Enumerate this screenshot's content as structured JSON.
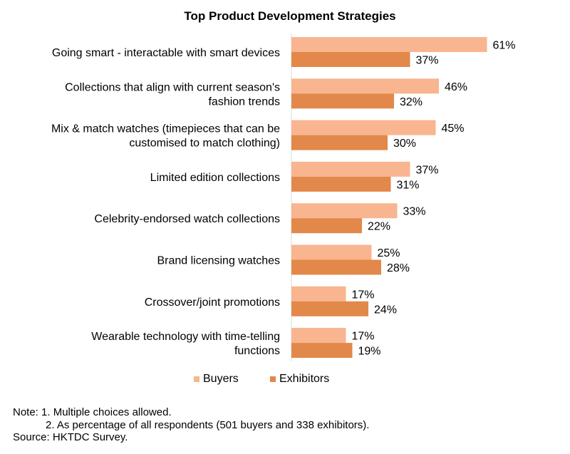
{
  "chart_data": {
    "type": "bar",
    "orientation": "horizontal",
    "title": "Top Product Development Strategies",
    "xlabel": "",
    "ylabel": "",
    "xlim": [
      0,
      61
    ],
    "grid": false,
    "legend_position": "bottom",
    "value_format": "percent",
    "categories": [
      [
        "Going smart - interactable with smart devices"
      ],
      [
        "Collections that align with current season's",
        "fashion trends"
      ],
      [
        "Mix & match watches (timepieces that can be",
        "customised to match clothing)"
      ],
      [
        "Limited edition collections"
      ],
      [
        "Celebrity-endorsed watch collections"
      ],
      [
        "Brand licensing watches"
      ],
      [
        "Crossover/joint promotions"
      ],
      [
        "Wearable technology with time-telling",
        "functions"
      ]
    ],
    "series": [
      {
        "name": "Buyers",
        "color": "#F8B58F",
        "values": [
          61,
          46,
          45,
          37,
          33,
          25,
          17,
          17
        ],
        "labels": [
          "61%",
          "46%",
          "45%",
          "37%",
          "33%",
          "25%",
          "17%",
          "17%"
        ]
      },
      {
        "name": "Exhibitors",
        "color": "#E2884A",
        "values": [
          37,
          32,
          30,
          31,
          22,
          28,
          24,
          19
        ],
        "labels": [
          "37%",
          "32%",
          "30%",
          "31%",
          "22%",
          "28%",
          "24%",
          "19%"
        ]
      }
    ]
  },
  "notes": {
    "line1": "Note: 1. Multiple choices allowed.",
    "line2": "2. As percentage of all respondents (501 buyers and 338 exhibitors).",
    "source": "Source: HKTDC Survey."
  }
}
